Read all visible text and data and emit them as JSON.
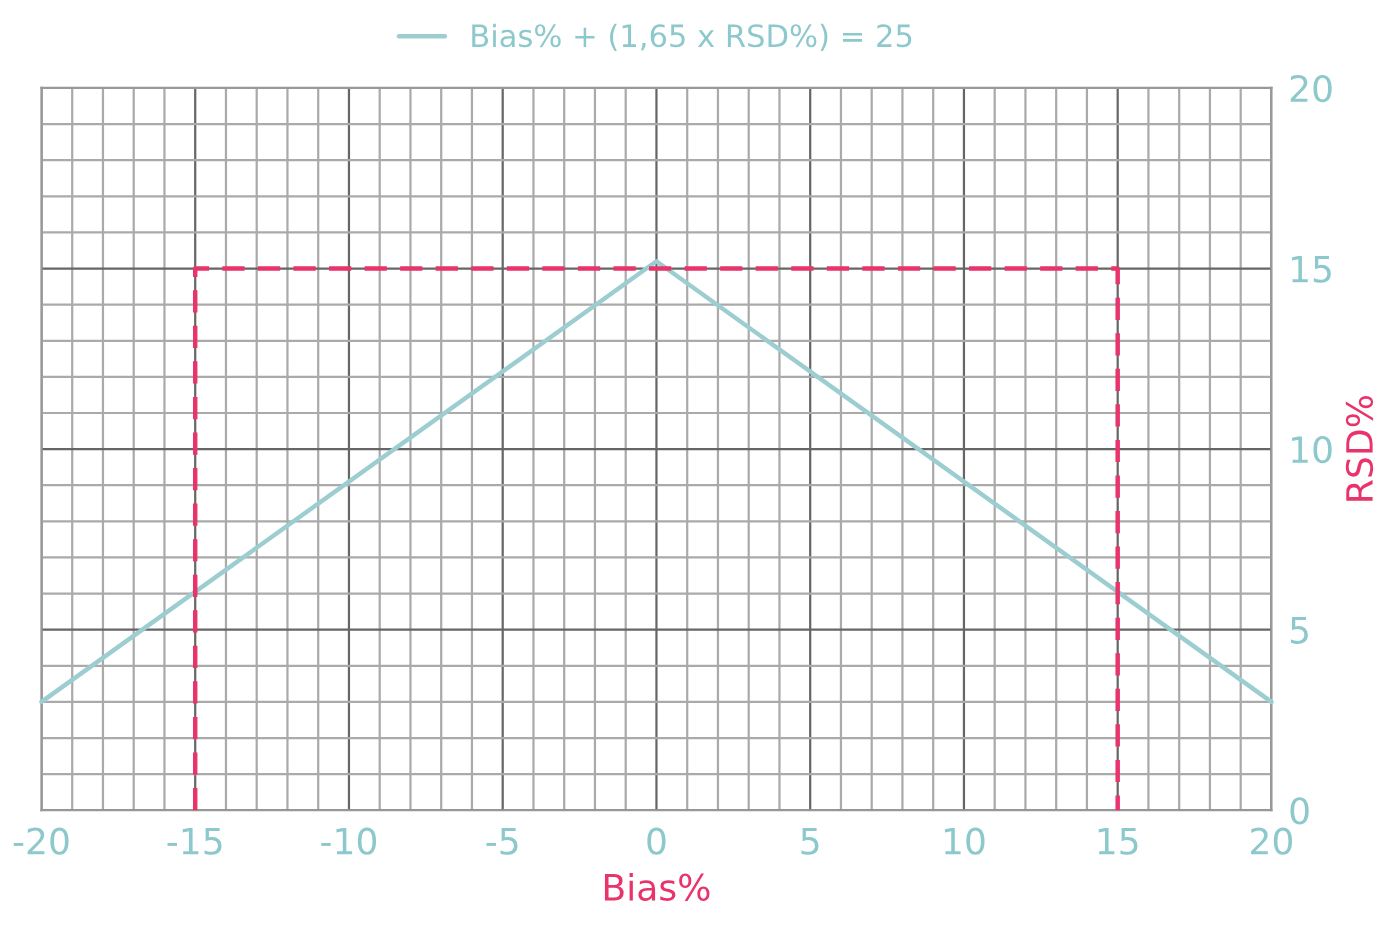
{
  "chart_data": {
    "type": "line",
    "xlabel": "Bias%",
    "ylabel": "RSD%",
    "series": [
      {
        "name": "Bias% + (1,65 x RSD%) = 25",
        "color": "#9ccdd0",
        "x": [
          -20,
          0,
          20
        ],
        "values": [
          3.0,
          15.2,
          3.0
        ],
        "line_style": "solid"
      },
      {
        "color": "#e8336b",
        "x": [
          -15,
          -15,
          15,
          15
        ],
        "values": [
          0,
          15,
          15,
          0
        ],
        "line_style": "dashed"
      }
    ],
    "xlim": [
      -20,
      20
    ],
    "ylim": [
      0,
      20
    ],
    "xticks": [
      -20,
      {
        "value": -19,
        "label": null
      },
      {
        "value": -18,
        "label": null
      },
      {
        "value": -17,
        "label": null
      },
      {
        "value": -16,
        "label": null
      },
      -15,
      {
        "value": -14,
        "label": null
      },
      {
        "value": -13,
        "label": null
      },
      {
        "value": -12,
        "label": null
      },
      {
        "value": -11,
        "label": null
      },
      -10,
      {
        "value": -9,
        "label": null
      },
      {
        "value": -8,
        "label": null
      },
      {
        "value": -7,
        "label": null
      },
      {
        "value": -6,
        "label": null
      },
      -5,
      {
        "value": -4,
        "label": null
      },
      {
        "value": -3,
        "label": null
      },
      {
        "value": -2,
        "label": null
      },
      {
        "value": -1,
        "label": null
      },
      0,
      {
        "value": 1,
        "label": null
      },
      {
        "value": 2,
        "label": null
      },
      {
        "value": 3,
        "label": null
      },
      {
        "value": 4,
        "label": null
      },
      5,
      {
        "value": 6,
        "label": null
      },
      {
        "value": 7,
        "label": null
      },
      {
        "value": 8,
        "label": null
      },
      {
        "value": 9,
        "label": null
      },
      10,
      {
        "value": 11,
        "label": null
      },
      {
        "value": 12,
        "label": null
      },
      {
        "value": 13,
        "label": null
      },
      {
        "value": 14,
        "label": null
      },
      15,
      {
        "value": 16,
        "label": null
      },
      {
        "value": 17,
        "label": null
      },
      {
        "value": 18,
        "label": null
      },
      {
        "value": 19,
        "label": null
      },
      20
    ],
    "yticks": [
      0,
      {
        "value": 1,
        "label": null
      },
      {
        "value": 2,
        "label": null
      },
      {
        "value": 3,
        "label": null
      },
      {
        "value": 4,
        "label": null
      },
      5,
      {
        "value": 6,
        "label": null
      },
      {
        "value": 7,
        "label": null
      },
      {
        "value": 8,
        "label": null
      },
      {
        "value": 9,
        "label": null
      },
      10,
      {
        "value": 11,
        "label": null
      },
      {
        "value": 12,
        "label": null
      },
      {
        "value": 13,
        "label": null
      },
      {
        "value": 14,
        "label": null
      },
      15,
      {
        "value": 16,
        "label": null
      },
      {
        "value": 17,
        "label": null
      },
      {
        "value": 18,
        "label": null
      },
      {
        "value": 19,
        "label": null
      },
      20
    ],
    "grid": true,
    "legend": "top"
  }
}
